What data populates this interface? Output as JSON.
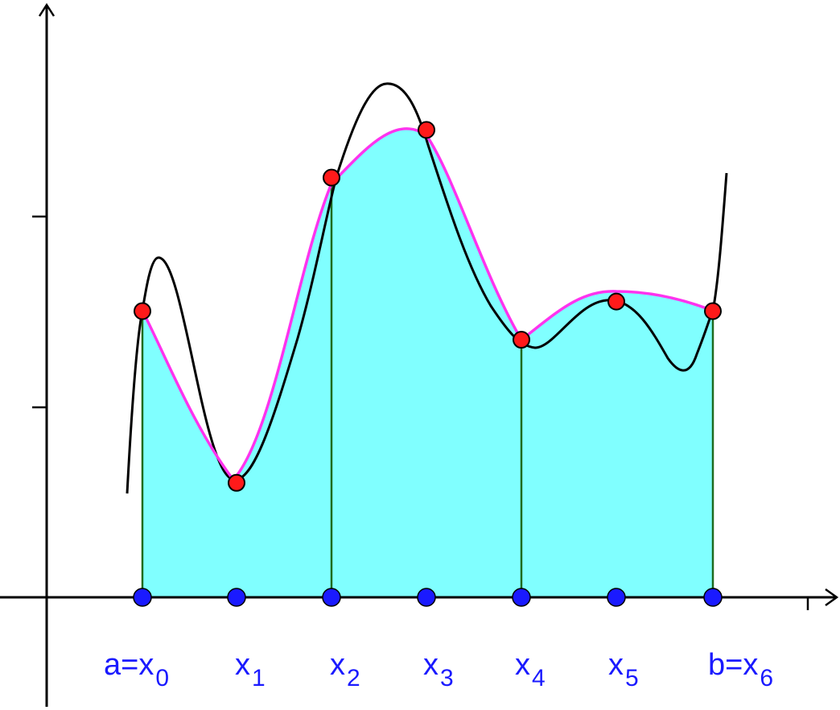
{
  "diagram": {
    "kind": "simpson-rule-illustration",
    "colors": {
      "background": "#ffffff",
      "axis": "#000000",
      "curve": "#000000",
      "approximation": "#ff33ee",
      "fill": "#80ffff",
      "strip_edges": "#1f6b1f",
      "sample_points": "#ff1a1a",
      "node_points": "#1a1aff",
      "labels": "#1a1aff"
    },
    "node_labels": [
      {
        "main": "a=x",
        "sub": "0"
      },
      {
        "main": "x",
        "sub": "1"
      },
      {
        "main": "x",
        "sub": "2"
      },
      {
        "main": "x",
        "sub": "3"
      },
      {
        "main": "x",
        "sub": "4"
      },
      {
        "main": "x",
        "sub": "5"
      },
      {
        "main": "b=x",
        "sub": "6"
      }
    ],
    "sample_heights": [
      1.5,
      0.6,
      2.2,
      2.45,
      1.35,
      1.55,
      1.5
    ],
    "strip_edges_at_nodes": [
      0,
      2,
      4,
      6
    ]
  }
}
